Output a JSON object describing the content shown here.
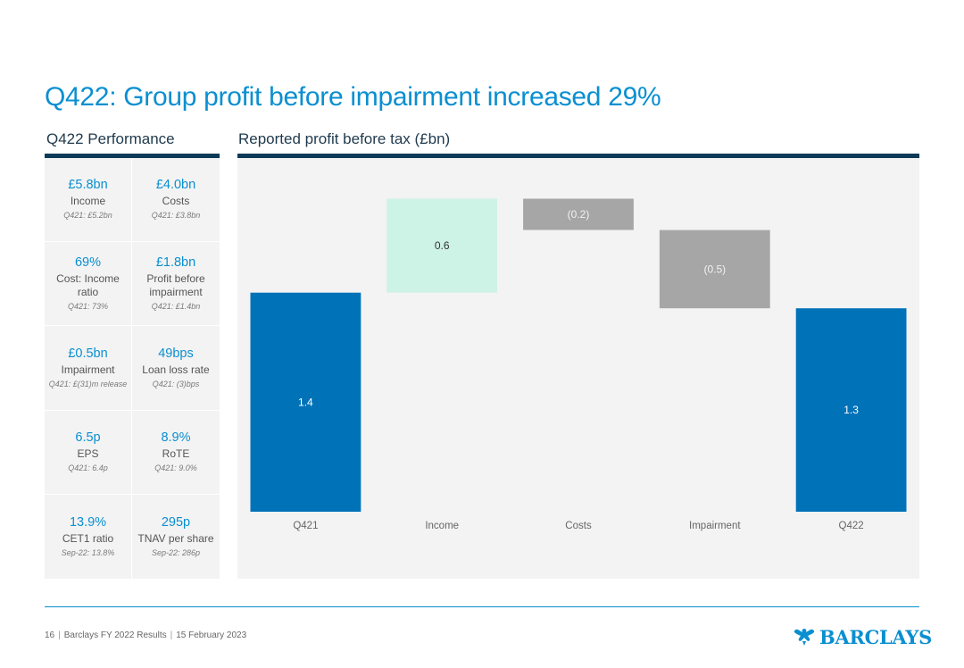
{
  "title": "Q422: Group profit before impairment increased 29%",
  "left_heading": "Q422 Performance",
  "right_heading": "Reported profit before tax (£bn)",
  "kpis": [
    [
      {
        "value": "£5.8bn",
        "label": "Income",
        "prior": "Q421: £5.2bn"
      },
      {
        "value": "£4.0bn",
        "label": "Costs",
        "prior": "Q421: £3.8bn"
      }
    ],
    [
      {
        "value": "69%",
        "label": "Cost: Income ratio",
        "prior": "Q421: 73%"
      },
      {
        "value": "£1.8bn",
        "label": "Profit before impairment",
        "prior": "Q421: £1.4bn"
      }
    ],
    [
      {
        "value": "£0.5bn",
        "label": "Impairment",
        "prior": "Q421: £(31)m release"
      },
      {
        "value": "49bps",
        "label": "Loan loss rate",
        "prior": "Q421: (3)bps"
      }
    ],
    [
      {
        "value": "6.5p",
        "label": "EPS",
        "prior": "Q421: 6.4p"
      },
      {
        "value": "8.9%",
        "label": "RoTE",
        "prior": "Q421: 9.0%"
      }
    ],
    [
      {
        "value": "13.9%",
        "label": "CET1 ratio",
        "prior": "Sep-22: 13.8%"
      },
      {
        "value": "295p",
        "label": "TNAV per share",
        "prior": "Sep-22: 286p"
      }
    ]
  ],
  "chart_data": {
    "type": "bar",
    "subtype": "waterfall",
    "title": "Reported profit before tax (£bn)",
    "unit": "£bn",
    "categories": [
      "Q421",
      "Income",
      "Costs",
      "Impairment",
      "Q422"
    ],
    "values": [
      1.4,
      0.6,
      -0.2,
      -0.5,
      1.3
    ],
    "data_labels": [
      "1.4",
      "0.6",
      "(0.2)",
      "(0.5)",
      "1.3"
    ],
    "bar_kinds": [
      "total",
      "increase",
      "decrease",
      "decrease",
      "total"
    ],
    "colors": {
      "total": "#0072b8",
      "increase": "#cdf2e6",
      "decrease": "#a6a6a6"
    },
    "label_colors": {
      "total": "#ffffff",
      "increase": "#333333",
      "decrease": "#f2f2f2"
    },
    "ylim": [
      0,
      2.1
    ],
    "grid": false,
    "legend": "none"
  },
  "footer": {
    "page": "16",
    "doc": "Barclays FY 2022 Results",
    "date": "15 February 2023"
  },
  "logo_text": "BARCLAYS",
  "colors": {
    "accent": "#0a8fd0",
    "dark_navy": "#0c3a57",
    "panel_bg": "#f3f3f3"
  }
}
